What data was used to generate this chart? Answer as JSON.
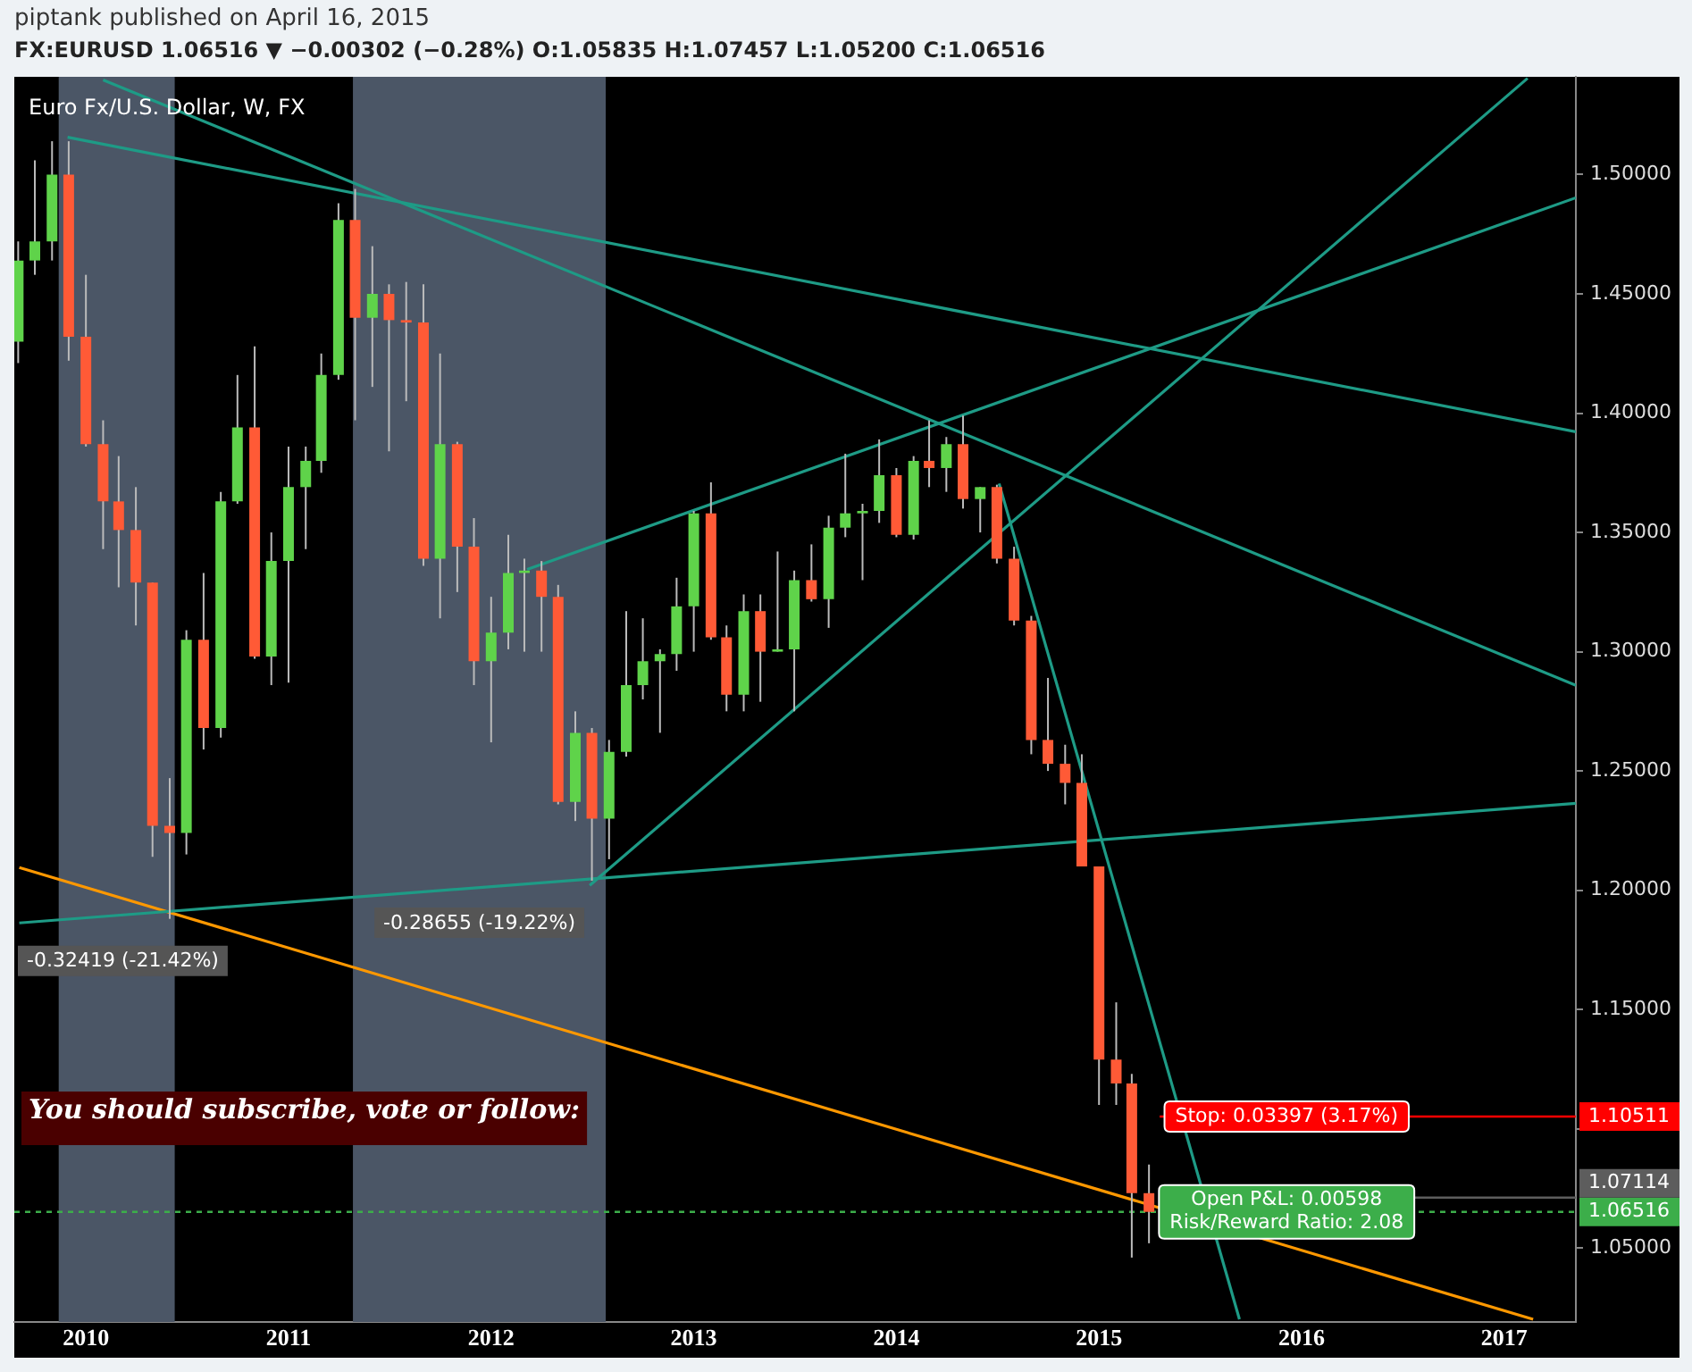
{
  "chart_data": {
    "type": "candlestick",
    "title": "piptank published on April 16, 2015",
    "subtitle": "FX:EURUSD 1.06516 ▼ −0.00302 (−0.28%) O:1.05835 H:1.07457 L:1.05200 C:1.06516",
    "x": [
      "2009-09",
      "2009-10",
      "2009-11",
      "2009-12",
      "2010-01",
      "2010-02",
      "2010-03",
      "2010-04",
      "2010-05",
      "2010-06",
      "2010-07",
      "2010-08",
      "2010-09",
      "2010-10",
      "2010-11",
      "2010-12",
      "2011-01",
      "2011-02",
      "2011-03",
      "2011-04",
      "2011-05",
      "2011-06",
      "2011-07",
      "2011-08",
      "2011-09",
      "2011-10",
      "2011-11",
      "2011-12",
      "2012-01",
      "2012-02",
      "2012-03",
      "2012-04",
      "2012-05",
      "2012-06",
      "2012-07",
      "2012-08",
      "2012-09",
      "2012-10",
      "2012-11",
      "2012-12",
      "2013-01",
      "2013-02",
      "2013-03",
      "2013-04",
      "2013-05",
      "2013-06",
      "2013-07",
      "2013-08",
      "2013-09",
      "2013-10",
      "2013-11",
      "2013-12",
      "2014-01",
      "2014-02",
      "2014-03",
      "2014-04",
      "2014-05",
      "2014-06",
      "2014-07",
      "2014-08",
      "2014-09",
      "2014-10",
      "2014-11",
      "2014-12",
      "2015-01",
      "2015-02",
      "2015-03",
      "2015-04"
    ],
    "ohlc": [
      [
        1.43,
        1.472,
        1.421,
        1.464
      ],
      [
        1.464,
        1.506,
        1.458,
        1.472
      ],
      [
        1.472,
        1.514,
        1.464,
        1.5
      ],
      [
        1.5,
        1.514,
        1.422,
        1.432
      ],
      [
        1.432,
        1.458,
        1.386,
        1.387
      ],
      [
        1.387,
        1.397,
        1.343,
        1.363
      ],
      [
        1.363,
        1.382,
        1.327,
        1.351
      ],
      [
        1.351,
        1.369,
        1.311,
        1.329
      ],
      [
        1.329,
        1.329,
        1.214,
        1.227
      ],
      [
        1.227,
        1.247,
        1.188,
        1.224
      ],
      [
        1.224,
        1.309,
        1.215,
        1.305
      ],
      [
        1.305,
        1.333,
        1.259,
        1.268
      ],
      [
        1.268,
        1.367,
        1.264,
        1.363
      ],
      [
        1.363,
        1.416,
        1.362,
        1.394
      ],
      [
        1.394,
        1.428,
        1.297,
        1.298
      ],
      [
        1.298,
        1.35,
        1.286,
        1.338
      ],
      [
        1.338,
        1.386,
        1.287,
        1.369
      ],
      [
        1.369,
        1.386,
        1.343,
        1.38
      ],
      [
        1.38,
        1.425,
        1.375,
        1.416
      ],
      [
        1.416,
        1.488,
        1.414,
        1.481
      ],
      [
        1.481,
        1.494,
        1.397,
        1.44
      ],
      [
        1.44,
        1.47,
        1.411,
        1.45
      ],
      [
        1.45,
        1.454,
        1.384,
        1.439
      ],
      [
        1.439,
        1.455,
        1.405,
        1.438
      ],
      [
        1.438,
        1.454,
        1.336,
        1.339
      ],
      [
        1.339,
        1.425,
        1.314,
        1.387
      ],
      [
        1.387,
        1.388,
        1.325,
        1.344
      ],
      [
        1.344,
        1.356,
        1.286,
        1.296
      ],
      [
        1.296,
        1.323,
        1.262,
        1.308
      ],
      [
        1.308,
        1.349,
        1.301,
        1.333
      ],
      [
        1.333,
        1.339,
        1.3,
        1.334
      ],
      [
        1.334,
        1.338,
        1.3,
        1.323
      ],
      [
        1.323,
        1.328,
        1.236,
        1.237
      ],
      [
        1.237,
        1.275,
        1.229,
        1.266
      ],
      [
        1.266,
        1.268,
        1.204,
        1.23
      ],
      [
        1.23,
        1.263,
        1.213,
        1.258
      ],
      [
        1.258,
        1.317,
        1.256,
        1.286
      ],
      [
        1.286,
        1.314,
        1.28,
        1.296
      ],
      [
        1.296,
        1.301,
        1.266,
        1.299
      ],
      [
        1.299,
        1.331,
        1.292,
        1.319
      ],
      [
        1.319,
        1.359,
        1.3,
        1.358
      ],
      [
        1.358,
        1.371,
        1.305,
        1.306
      ],
      [
        1.306,
        1.311,
        1.275,
        1.282
      ],
      [
        1.282,
        1.324,
        1.275,
        1.317
      ],
      [
        1.317,
        1.324,
        1.279,
        1.3
      ],
      [
        1.3,
        1.342,
        1.3,
        1.301
      ],
      [
        1.301,
        1.334,
        1.275,
        1.33
      ],
      [
        1.33,
        1.345,
        1.321,
        1.322
      ],
      [
        1.322,
        1.357,
        1.31,
        1.352
      ],
      [
        1.352,
        1.383,
        1.348,
        1.358
      ],
      [
        1.358,
        1.362,
        1.33,
        1.359
      ],
      [
        1.359,
        1.389,
        1.354,
        1.374
      ],
      [
        1.374,
        1.377,
        1.348,
        1.349
      ],
      [
        1.349,
        1.382,
        1.347,
        1.38
      ],
      [
        1.38,
        1.397,
        1.369,
        1.377
      ],
      [
        1.377,
        1.39,
        1.367,
        1.387
      ],
      [
        1.387,
        1.399,
        1.36,
        1.364
      ],
      [
        1.364,
        1.369,
        1.35,
        1.369
      ],
      [
        1.369,
        1.37,
        1.337,
        1.339
      ],
      [
        1.339,
        1.344,
        1.311,
        1.313
      ],
      [
        1.313,
        1.315,
        1.257,
        1.263
      ],
      [
        1.263,
        1.289,
        1.25,
        1.253
      ],
      [
        1.253,
        1.261,
        1.236,
        1.245
      ],
      [
        1.245,
        1.257,
        1.21,
        1.21
      ],
      [
        1.21,
        1.21,
        1.11,
        1.129
      ],
      [
        1.129,
        1.153,
        1.11,
        1.119
      ],
      [
        1.119,
        1.123,
        1.046,
        1.073
      ],
      [
        1.073,
        1.085,
        1.052,
        1.06516
      ]
    ],
    "colors": [
      "#5fd34a",
      "#5fd34a",
      "#5fd34a",
      "#ff5a36",
      "#ff5a36",
      "#ff5a36",
      "#ff5a36",
      "#ff5a36",
      "#ff5a36",
      "#ff5a36",
      "#5fd34a",
      "#ff5a36",
      "#5fd34a",
      "#5fd34a",
      "#ff5a36",
      "#5fd34a",
      "#5fd34a",
      "#5fd34a",
      "#5fd34a",
      "#5fd34a",
      "#ff5a36",
      "#5fd34a",
      "#ff5a36",
      "#ff5a36",
      "#ff5a36",
      "#5fd34a",
      "#ff5a36",
      "#ff5a36",
      "#5fd34a",
      "#5fd34a",
      "#5fd34a",
      "#ff5a36",
      "#ff5a36",
      "#5fd34a",
      "#ff5a36",
      "#5fd34a",
      "#5fd34a",
      "#5fd34a",
      "#5fd34a",
      "#5fd34a",
      "#5fd34a",
      "#ff5a36",
      "#ff5a36",
      "#5fd34a",
      "#ff5a36",
      "#5fd34a",
      "#5fd34a",
      "#ff5a36",
      "#5fd34a",
      "#5fd34a",
      "#5fd34a",
      "#5fd34a",
      "#ff5a36",
      "#5fd34a",
      "#ff5a36",
      "#5fd34a",
      "#ff5a36",
      "#5fd34a",
      "#ff5a36",
      "#ff5a36",
      "#ff5a36",
      "#ff5a36",
      "#ff5a36",
      "#ff5a36",
      "#ff5a36",
      "#ff5a36",
      "#ff5a36",
      "#ff5a36"
    ],
    "series": [
      {
        "type": "line",
        "color": "#1e9b86",
        "x": [
          "2009-11-29",
          "2017-05-10"
        ],
        "values": [
          1.5157,
          1.3922
        ]
      },
      {
        "type": "line",
        "color": "#1e9b86",
        "x": [
          "2010-02-01",
          "2017-05-10"
        ],
        "values": [
          1.5397,
          1.2859
        ]
      },
      {
        "type": "line",
        "color": "#1e9b86",
        "x": [
          "2012-06-27",
          "2017-02-12"
        ],
        "values": [
          1.202,
          1.5404
        ]
      },
      {
        "type": "line",
        "color": "#1e9b86",
        "x": [
          "2012-03-06",
          "2017-05-10"
        ],
        "values": [
          1.3345,
          1.4903
        ]
      },
      {
        "type": "line",
        "color": "#1e9b86",
        "x": [
          "2009-09-03",
          "2017-05-10"
        ],
        "values": [
          1.1863,
          1.2364
        ]
      },
      {
        "type": "line",
        "color": "#1e9b86",
        "x": [
          "2014-07-05",
          "2015-09-11"
        ],
        "values": [
          1.3705,
          1.0201
        ]
      },
      {
        "type": "line",
        "color": "#ff9800",
        "x": [
          "2009-09-03",
          "2017-02-22"
        ],
        "values": [
          1.2095,
          1.0201
        ]
      }
    ],
    "xlim": [
      "2009-08-25",
      "2017-05-10"
    ],
    "xticks": [
      "2010",
      "2011",
      "2012",
      "2013",
      "2014",
      "2015",
      "2016",
      "2017"
    ],
    "ylim": [
      1.019,
      1.541
    ],
    "yticks": [
      {
        "value": 1.05,
        "label": "1.05000"
      },
      {
        "value": 1.1,
        "label": null
      },
      {
        "value": 1.15,
        "label": "1.15000"
      },
      {
        "value": 1.2,
        "label": "1.20000"
      },
      {
        "value": 1.25,
        "label": "1.25000"
      },
      {
        "value": 1.3,
        "label": "1.30000"
      },
      {
        "value": 1.35,
        "label": "1.35000"
      },
      {
        "value": 1.4,
        "label": "1.40000"
      },
      {
        "value": 1.45,
        "label": "1.45000"
      },
      {
        "value": 1.5,
        "label": "1.50000"
      }
    ],
    "bands": [
      {
        "axis": "x",
        "from": "2009-11-13",
        "to": "2010-06-10",
        "label": "-0.32419 (-21.42%)",
        "color": "#4b5666"
      },
      {
        "axis": "x",
        "from": "2011-04-27",
        "to": "2012-07-26",
        "label": "-0.28655 (-19.22%)",
        "color": "#4b5666"
      }
    ],
    "ref_lines": [
      {
        "axis": "y",
        "value": 1.10511,
        "label": "1.10511",
        "color": "#ff0000"
      },
      {
        "axis": "y",
        "value": 1.07114,
        "label": "1.07114",
        "color": "#5d5d5d"
      },
      {
        "axis": "y",
        "value": 1.06516,
        "label": "1.06516",
        "color": "#3cae4a",
        "line_style": "dotted"
      }
    ],
    "annotations": [
      "Euro Fx/U.S. Dollar, W, FX",
      "You should subscribe, vote or follow:",
      {
        "text": "Stop: 0.03397 (3.17%)",
        "x": "2015-12-05",
        "y": 1.10511
      },
      {
        "text": "Open P&L: 0.00598\nRisk/Reward Ratio: 2.08",
        "x": "2015-12-05",
        "y": 1.06516
      }
    ]
  }
}
